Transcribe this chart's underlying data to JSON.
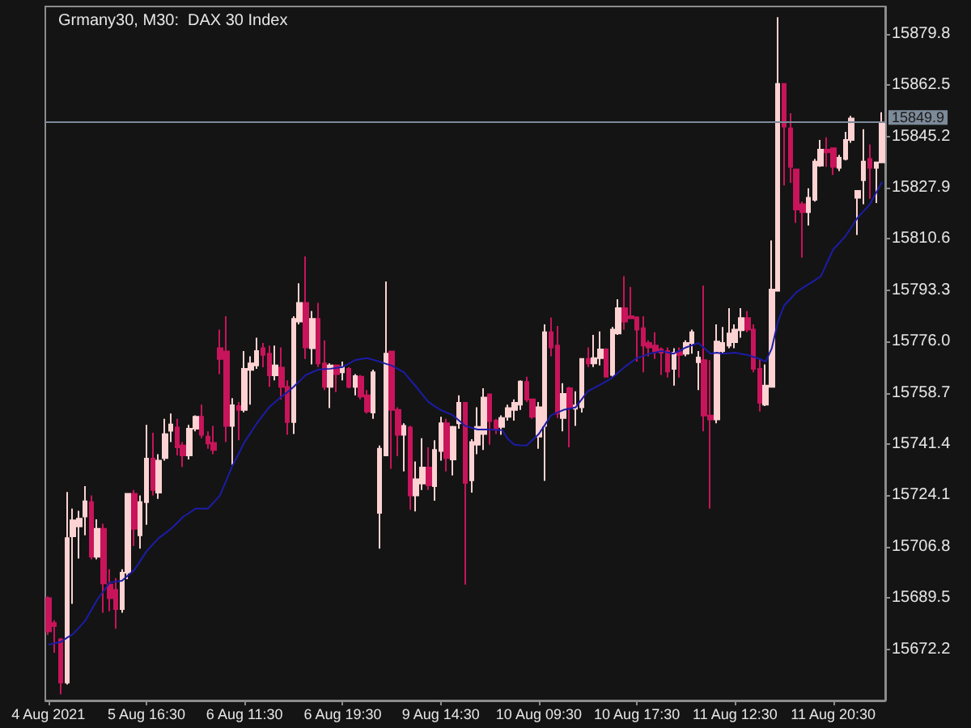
{
  "chart_data": {
    "type": "candlestick",
    "title": "Grmany30, M30:  DAX 30 Index",
    "categories": [
      "4 Aug 2021",
      null,
      null,
      null,
      null,
      null,
      null,
      null,
      null,
      null,
      null,
      null,
      null,
      null,
      null,
      null,
      "5 Aug 16:30",
      null,
      null,
      null,
      null,
      null,
      null,
      null,
      null,
      null,
      null,
      null,
      null,
      null,
      null,
      null,
      "6 Aug 11:30",
      null,
      null,
      null,
      null,
      null,
      null,
      null,
      null,
      null,
      null,
      null,
      null,
      null,
      null,
      null,
      "6 Aug 19:30",
      null,
      null,
      null,
      null,
      null,
      null,
      null,
      null,
      null,
      null,
      null,
      null,
      null,
      null,
      null,
      "9 Aug 14:30",
      null,
      null,
      null,
      null,
      null,
      null,
      null,
      null,
      null,
      null,
      null,
      null,
      null,
      null,
      null,
      "10 Aug 09:30",
      null,
      null,
      null,
      null,
      null,
      null,
      null,
      null,
      null,
      null,
      null,
      null,
      null,
      null,
      null,
      "10 Aug 17:30",
      null,
      null,
      null,
      null,
      null,
      null,
      null,
      null,
      null,
      null,
      null,
      null,
      null,
      null,
      null,
      "11 Aug 12:30",
      null,
      null,
      null,
      null,
      null,
      null,
      null,
      null,
      null,
      null,
      null,
      null,
      null,
      null,
      null,
      "11 Aug 20:30",
      null,
      null,
      null,
      null,
      null,
      null,
      null,
      null
    ],
    "ohlc": [
      [
        15689.4,
        15690.0,
        15677.0,
        15678.2
      ],
      [
        15681.0,
        15682.0,
        15671.0,
        15680.0
      ],
      [
        15675.5,
        15676.0,
        15657.0,
        15661.0
      ],
      [
        15661.0,
        15725.2,
        15660.3,
        15709.7
      ],
      [
        15710.3,
        15719.6,
        15687.5,
        15715.7
      ],
      [
        15713.6,
        15718.9,
        15702.8,
        15716.2
      ],
      [
        15717.0,
        15727.2,
        15710.6,
        15722.1
      ],
      [
        15721.8,
        15724.1,
        15702.5,
        15703.4
      ],
      [
        15703.4,
        15716.0,
        15702.5,
        15712.8
      ],
      [
        15712.8,
        15714.5,
        15684.5,
        15694.4
      ],
      [
        15694.0,
        15699.2,
        15685.0,
        15689.4
      ],
      [
        15692.2,
        15696.2,
        15679.1,
        15685.7
      ],
      [
        15685.7,
        15699.2,
        15684.5,
        15698.0
      ],
      [
        15698.0,
        15724.6,
        15695.8,
        15724.6
      ],
      [
        15724.6,
        15725.9,
        15707.0,
        15712.8
      ],
      [
        15710.6,
        15724.1,
        15706.1,
        15721.8
      ],
      [
        15721.8,
        15747.9,
        15714.2,
        15736.5
      ],
      [
        15736.5,
        15745.2,
        15724.1,
        15725.9
      ],
      [
        15725.0,
        15738.0,
        15722.9,
        15735.8
      ],
      [
        15736.7,
        15749.9,
        15735.8,
        15744.7
      ],
      [
        15745.9,
        15751.7,
        15742.1,
        15748.0
      ],
      [
        15747.0,
        15749.9,
        15737.6,
        15740.3
      ],
      [
        15740.9,
        15742.1,
        15733.7,
        15737.6
      ],
      [
        15737.6,
        15747.9,
        15736.2,
        15746.6
      ],
      [
        15746.6,
        15751.1,
        15745.7,
        15750.6
      ],
      [
        15750.6,
        15754.7,
        15743.4,
        15744.5
      ],
      [
        15743.9,
        15745.7,
        15739.8,
        15741.6
      ],
      [
        15741.8,
        15747.5,
        15738.0,
        15739.4
      ],
      [
        15773.7,
        15780.0,
        15765.0,
        15770.1
      ],
      [
        15772.6,
        15784.5,
        15742.1,
        15747.5
      ],
      [
        15747.5,
        15756.9,
        15734.4,
        15754.5
      ],
      [
        15754.2,
        15755.6,
        15742.7,
        15752.9
      ],
      [
        15752.9,
        15772.8,
        15752.1,
        15766.8
      ],
      [
        15766.4,
        15771.0,
        15754.7,
        15768.6
      ],
      [
        15767.9,
        15777.3,
        15766.8,
        15772.8
      ],
      [
        15773.7,
        15775.5,
        15767.3,
        15771.5
      ],
      [
        15771.9,
        15774.6,
        15760.7,
        15764.6
      ],
      [
        15764.6,
        15774.6,
        15762.9,
        15767.9
      ],
      [
        15767.2,
        15774.0,
        15756.5,
        15760.7
      ],
      [
        15760.7,
        15762.9,
        15744.5,
        15748.8
      ],
      [
        15748.8,
        15784.5,
        15744.8,
        15783.6
      ],
      [
        15782.7,
        15795.6,
        15781.8,
        15789.0
      ],
      [
        15789.0,
        15804.7,
        15770.1,
        15774.0
      ],
      [
        15773.7,
        15786.3,
        15768.3,
        15783.6
      ],
      [
        15783.6,
        15789.0,
        15767.4,
        15768.6
      ],
      [
        15768.6,
        15776.4,
        15759.6,
        15760.7
      ],
      [
        15760.7,
        15768.6,
        15753.5,
        15767.9
      ],
      [
        15767.9,
        15768.3,
        15758.9,
        15765.0
      ],
      [
        15765.6,
        15769.2,
        15762.9,
        15767.4
      ],
      [
        15766.8,
        15767.4,
        15760.2,
        15760.7
      ],
      [
        15760.7,
        15765.0,
        15757.8,
        15764.3
      ],
      [
        15764.1,
        15764.7,
        15756.5,
        15757.4
      ],
      [
        15757.8,
        15759.6,
        15751.7,
        15752.4
      ],
      [
        15752.0,
        15766.5,
        15749.9,
        15765.6
      ],
      [
        15718.2,
        15740.9,
        15706.1,
        15739.8
      ],
      [
        15737.6,
        15796.2,
        15737.6,
        15771.9
      ],
      [
        15772.6,
        15772.6,
        15733.1,
        15752.9
      ],
      [
        15752.9,
        15753.8,
        15737.3,
        15744.5
      ],
      [
        15744.5,
        15748.4,
        15732.2,
        15747.5
      ],
      [
        15747.0,
        15747.5,
        15719.2,
        15724.1
      ],
      [
        15724.1,
        15735.5,
        15718.7,
        15729.5
      ],
      [
        15728.1,
        15743.4,
        15725.9,
        15733.5
      ],
      [
        15733.5,
        15740.3,
        15725.9,
        15727.5
      ],
      [
        15727.2,
        15742.7,
        15722.3,
        15739.4
      ],
      [
        15739.1,
        15750.6,
        15735.8,
        15748.4
      ],
      [
        15748.4,
        15749.9,
        15732.2,
        15736.7
      ],
      [
        15736.2,
        15747.5,
        15730.8,
        15747.2
      ],
      [
        15748.4,
        15757.8,
        15746.6,
        15755.3
      ],
      [
        15755.3,
        15755.3,
        15694.0,
        15728.3
      ],
      [
        15729.2,
        15743.0,
        15725.0,
        15742.1
      ],
      [
        15741.2,
        15753.8,
        15738.0,
        15747.2
      ],
      [
        15744.8,
        15760.2,
        15739.4,
        15757.1
      ],
      [
        15758.2,
        15758.2,
        15741.2,
        15749.2
      ],
      [
        15749.3,
        15749.9,
        15744.8,
        15746.6
      ],
      [
        15747.2,
        15751.1,
        15744.5,
        15750.2
      ],
      [
        15750.6,
        15754.7,
        15749.3,
        15753.5
      ],
      [
        15752.9,
        15756.5,
        15749.3,
        15755.3
      ],
      [
        15754.7,
        15762.9,
        15752.9,
        15762.5
      ],
      [
        15762.3,
        15764.1,
        15755.6,
        15756.5
      ],
      [
        15756.5,
        15756.5,
        15749.9,
        15750.6
      ],
      [
        15743.9,
        15755.6,
        15739.8,
        15753.8
      ],
      [
        15747.5,
        15781.8,
        15729.0,
        15779.1
      ],
      [
        15779.1,
        15784.1,
        15771.0,
        15774.0
      ],
      [
        15774.6,
        15781.2,
        15750.2,
        15751.7
      ],
      [
        15750.2,
        15761.9,
        15745.7,
        15758.3
      ],
      [
        15760.2,
        15760.7,
        15740.3,
        15753.8
      ],
      [
        15753.3,
        15759.2,
        15747.5,
        15754.4
      ],
      [
        15753.8,
        15770.4,
        15752.0,
        15770.1
      ],
      [
        15770.1,
        15774.0,
        15767.4,
        15768.6
      ],
      [
        15768.6,
        15778.2,
        15767.4,
        15770.4
      ],
      [
        15770.4,
        15779.4,
        15767.9,
        15773.3
      ],
      [
        15773.3,
        15773.7,
        15763.8,
        15764.1
      ],
      [
        15764.7,
        15780.9,
        15764.1,
        15780.0
      ],
      [
        15778.7,
        15790.2,
        15778.2,
        15787.2
      ],
      [
        15787.2,
        15798.0,
        15780.0,
        15782.7
      ],
      [
        15784.5,
        15794.4,
        15783.6,
        15783.8
      ],
      [
        15784.1,
        15784.5,
        15769.2,
        15780.0
      ],
      [
        15780.5,
        15784.5,
        15765.6,
        15774.6
      ],
      [
        15775.5,
        15776.4,
        15771.0,
        15774.0
      ],
      [
        15774.6,
        15779.1,
        15770.1,
        15772.8
      ],
      [
        15773.3,
        15774.0,
        15764.7,
        15772.2
      ],
      [
        15772.8,
        15774.0,
        15763.8,
        15765.9
      ],
      [
        15766.8,
        15773.7,
        15761.1,
        15772.2
      ],
      [
        15772.4,
        15774.0,
        15763.8,
        15771.5
      ],
      [
        15771.9,
        15776.4,
        15771.0,
        15775.5
      ],
      [
        15775.5,
        15780.0,
        15771.9,
        15779.1
      ],
      [
        15769.0,
        15772.8,
        15759.6,
        15770.6
      ],
      [
        15769.7,
        15794.9,
        15745.7,
        15751.0
      ],
      [
        15751.0,
        15769.7,
        15719.6,
        15749.7
      ],
      [
        15749.7,
        15781.8,
        15748.4,
        15776.0
      ],
      [
        15772.8,
        15780.9,
        15771.9,
        15775.5
      ],
      [
        15774.6,
        15787.2,
        15773.7,
        15778.7
      ],
      [
        15775.8,
        15781.8,
        15773.7,
        15780.0
      ],
      [
        15779.8,
        15787.2,
        15777.3,
        15783.9
      ],
      [
        15783.9,
        15786.3,
        15779.1,
        15780.0
      ],
      [
        15780.0,
        15781.8,
        15765.6,
        15766.8
      ],
      [
        15766.8,
        15770.1,
        15752.4,
        15755.3
      ],
      [
        15754.7,
        15768.3,
        15754.2,
        15761.1
      ],
      [
        15760.7,
        15810.1,
        15760.7,
        15793.5
      ],
      [
        15793.1,
        15885.4,
        15793.1,
        15862.9
      ],
      [
        15862.9,
        15862.9,
        15828.6,
        15848.5
      ],
      [
        15847.9,
        15853.0,
        15829.5,
        15834.9
      ],
      [
        15834.0,
        15834.0,
        15816.0,
        15820.5
      ],
      [
        15822.3,
        15823.2,
        15804.3,
        15819.6
      ],
      [
        15819.6,
        15827.7,
        15815.1,
        15824.5
      ],
      [
        15823.8,
        15837.6,
        15823.2,
        15836.7
      ],
      [
        15835.3,
        15844.0,
        15834.9,
        15840.7
      ],
      [
        15840.7,
        15844.9,
        15834.9,
        15839.8
      ],
      [
        15841.2,
        15841.2,
        15832.2,
        15834.9
      ],
      [
        15834.6,
        15838.9,
        15833.5,
        15838.0
      ],
      [
        15837.6,
        15846.7,
        15837.1,
        15844.0
      ],
      [
        15844.0,
        15852.1,
        15843.0,
        15851.2
      ],
      [
        15824.5,
        15826.8,
        15811.9,
        15826.8
      ],
      [
        15830.4,
        15847.6,
        15822.3,
        15836.7
      ],
      [
        15837.6,
        15842.5,
        15824.1,
        15834.6
      ],
      [
        15834.6,
        15836.7,
        15822.7,
        15836.4
      ],
      [
        15836.4,
        15853.3,
        15836.4,
        15849.9
      ]
    ],
    "colors": [
      "#c8145a",
      "#c8145a",
      "#c8145a",
      "#fcd2d2",
      "#fcd2d2",
      "#fcd2d2",
      "#fcd2d2",
      "#c8145a",
      "#fcd2d2",
      "#c8145a",
      "#c8145a",
      "#c8145a",
      "#fcd2d2",
      "#fcd2d2",
      "#c8145a",
      "#fcd2d2",
      "#fcd2d2",
      "#c8145a",
      "#fcd2d2",
      "#fcd2d2",
      "#fcd2d2",
      "#c8145a",
      "#c8145a",
      "#fcd2d2",
      "#fcd2d2",
      "#c8145a",
      "#c8145a",
      "#c8145a",
      "#c8145a",
      "#c8145a",
      "#fcd2d2",
      "#c8145a",
      "#fcd2d2",
      "#fcd2d2",
      "#fcd2d2",
      "#c8145a",
      "#c8145a",
      "#fcd2d2",
      "#c8145a",
      "#c8145a",
      "#fcd2d2",
      "#fcd2d2",
      "#c8145a",
      "#fcd2d2",
      "#c8145a",
      "#c8145a",
      "#fcd2d2",
      "#c8145a",
      "#fcd2d2",
      "#c8145a",
      "#fcd2d2",
      "#c8145a",
      "#c8145a",
      "#fcd2d2",
      "#fcd2d2",
      "#fcd2d2",
      "#c8145a",
      "#c8145a",
      "#fcd2d2",
      "#c8145a",
      "#fcd2d2",
      "#fcd2d2",
      "#c8145a",
      "#fcd2d2",
      "#fcd2d2",
      "#c8145a",
      "#fcd2d2",
      "#fcd2d2",
      "#c8145a",
      "#fcd2d2",
      "#fcd2d2",
      "#fcd2d2",
      "#c8145a",
      "#c8145a",
      "#fcd2d2",
      "#fcd2d2",
      "#fcd2d2",
      "#fcd2d2",
      "#c8145a",
      "#c8145a",
      "#fcd2d2",
      "#fcd2d2",
      "#c8145a",
      "#c8145a",
      "#fcd2d2",
      "#c8145a",
      "#fcd2d2",
      "#fcd2d2",
      "#c8145a",
      "#fcd2d2",
      "#fcd2d2",
      "#c8145a",
      "#fcd2d2",
      "#fcd2d2",
      "#c8145a",
      "#c8145a",
      "#c8145a",
      "#c8145a",
      "#c8145a",
      "#c8145a",
      "#c8145a",
      "#c8145a",
      "#fcd2d2",
      "#c8145a",
      "#fcd2d2",
      "#fcd2d2",
      "#fcd2d2",
      "#c8145a",
      "#c8145a",
      "#fcd2d2",
      "#fcd2d2",
      "#fcd2d2",
      "#fcd2d2",
      "#fcd2d2",
      "#c8145a",
      "#c8145a",
      "#c8145a",
      "#fcd2d2",
      "#fcd2d2",
      "#fcd2d2",
      "#c8145a",
      "#c8145a",
      "#c8145a",
      "#c8145a",
      "#fcd2d2",
      "#fcd2d2",
      "#fcd2d2",
      "#c8145a",
      "#c8145a",
      "#fcd2d2",
      "#fcd2d2",
      "#fcd2d2",
      "#fcd2d2",
      "#fcd2d2",
      "#c8145a",
      "#fcd2d2",
      "#fcd2d2"
    ],
    "series": [
      {
        "type": "line",
        "color": "#1c1ca8",
        "values": [
          15673.7,
          15674.2,
          15674.6,
          15676.0,
          15677.3,
          15679.5,
          15681.8,
          15685.4,
          15689.0,
          15691.8,
          15694.7,
          15695.0,
          15695.3,
          15697.1,
          15698.9,
          15702.0,
          15705.2,
          15707.5,
          15709.7,
          15711.2,
          15712.8,
          15714.8,
          15716.9,
          15718.2,
          15719.6,
          15719.6,
          15719.6,
          15721.8,
          15724.1,
          15729.0,
          15734.0,
          15738.0,
          15742.1,
          15745.2,
          15748.4,
          15751.1,
          15753.8,
          15755.6,
          15757.4,
          15758.9,
          15760.7,
          15762.7,
          15764.7,
          15765.6,
          15766.5,
          15766.7,
          15766.8,
          15767.1,
          15767.4,
          15768.5,
          15769.7,
          15770.1,
          15770.4,
          15769.8,
          15769.2,
          15768.5,
          15767.9,
          15766.7,
          15765.6,
          15763.1,
          15760.7,
          15758.1,
          15755.6,
          15754.2,
          15752.9,
          15752.0,
          15751.1,
          15749.3,
          15747.5,
          15746.9,
          15746.3,
          15746.3,
          15746.3,
          15746.2,
          15746.1,
          15743.0,
          15741.2,
          15741.0,
          15740.9,
          15742.8,
          15744.8,
          15747.9,
          15751.1,
          15752.0,
          15752.9,
          15753.3,
          15753.8,
          15756.5,
          15759.2,
          15760.3,
          15761.4,
          15762.6,
          15763.8,
          15765.6,
          15767.4,
          15768.9,
          15770.4,
          15771.1,
          15771.9,
          15772.3,
          15772.8,
          15772.3,
          15771.9,
          15772.9,
          15774.0,
          15774.7,
          15775.5,
          15773.7,
          15771.9,
          15772.2,
          15771.9,
          15772.0,
          15772.2,
          15771.8,
          15771.5,
          15770.8,
          15770.1,
          15769.2,
          15773.7,
          15782.7,
          15788.1,
          15790.3,
          15792.6,
          15794.0,
          15795.3,
          15796.6,
          15798.0,
          15802.5,
          15807.0,
          15809.2,
          15811.5,
          15814.6,
          15817.8,
          15820.0,
          15822.3,
          15826.1,
          15829.9
        ]
      }
    ],
    "ylim": [
      15654.9,
      15889.0
    ],
    "yticks": [
      15672.2,
      15689.5,
      15706.8,
      15724.1,
      15741.4,
      15758.7,
      {
        "value": 15776,
        "label": "15776.0"
      },
      15793.3,
      15810.6,
      15827.9,
      15845.2,
      15862.5,
      15879.8
    ],
    "ref_lines": [
      {
        "axis": "y",
        "value": 15849.9,
        "label": "15849.9",
        "color": "#7d8a99"
      }
    ],
    "grid": false
  }
}
